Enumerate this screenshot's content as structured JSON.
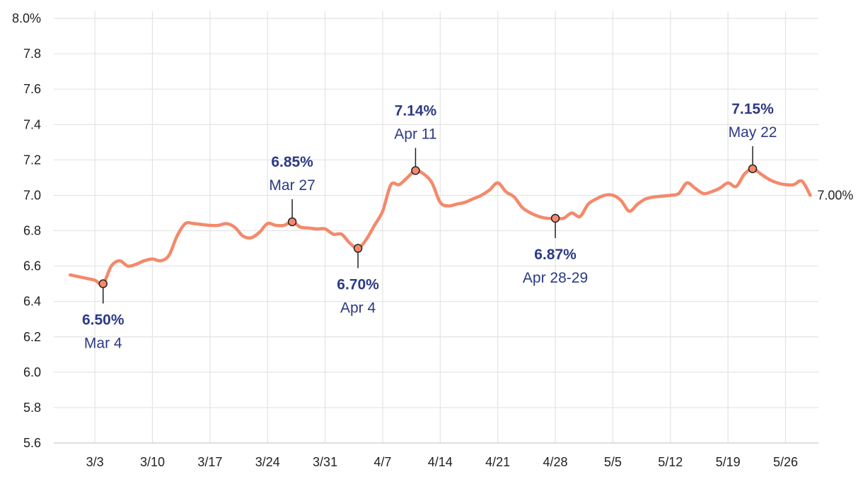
{
  "chart_data": {
    "type": "line",
    "x_start": "2025-02-26",
    "x_end": "2025-05-30",
    "ylim": [
      5.6,
      8.0
    ],
    "y_ticks": [
      {
        "value": 8.0,
        "label": "8.0%"
      },
      {
        "value": 7.8,
        "label": "7.8"
      },
      {
        "value": 7.6,
        "label": "7.6"
      },
      {
        "value": 7.4,
        "label": "7.4"
      },
      {
        "value": 7.2,
        "label": "7.2"
      },
      {
        "value": 7.0,
        "label": "7.0"
      },
      {
        "value": 6.8,
        "label": "6.8"
      },
      {
        "value": 6.6,
        "label": "6.6"
      },
      {
        "value": 6.4,
        "label": "6.4"
      },
      {
        "value": 6.2,
        "label": "6.2"
      },
      {
        "value": 6.0,
        "label": "6.0"
      },
      {
        "value": 5.8,
        "label": "5.8"
      },
      {
        "value": 5.6,
        "label": "5.6"
      }
    ],
    "x_ticks": [
      {
        "date": "2025-03-03",
        "label": "3/3"
      },
      {
        "date": "2025-03-10",
        "label": "3/10"
      },
      {
        "date": "2025-03-17",
        "label": "3/17"
      },
      {
        "date": "2025-03-24",
        "label": "3/24"
      },
      {
        "date": "2025-03-31",
        "label": "3/31"
      },
      {
        "date": "2025-04-07",
        "label": "4/7"
      },
      {
        "date": "2025-04-14",
        "label": "4/14"
      },
      {
        "date": "2025-04-21",
        "label": "4/21"
      },
      {
        "date": "2025-04-28",
        "label": "4/28"
      },
      {
        "date": "2025-05-05",
        "label": "5/5"
      },
      {
        "date": "2025-05-12",
        "label": "5/12"
      },
      {
        "date": "2025-05-19",
        "label": "5/19"
      },
      {
        "date": "2025-05-26",
        "label": "5/26"
      }
    ],
    "grid": true,
    "line_color": "#f4896b",
    "annotation_color": "#2d3a84",
    "series": [
      {
        "points": [
          [
            "2025-02-28",
            6.55
          ],
          [
            "2025-03-01",
            6.54
          ],
          [
            "2025-03-02",
            6.53
          ],
          [
            "2025-03-03",
            6.52
          ],
          [
            "2025-03-04",
            6.5
          ],
          [
            "2025-03-05",
            6.6
          ],
          [
            "2025-03-06",
            6.63
          ],
          [
            "2025-03-07",
            6.6
          ],
          [
            "2025-03-08",
            6.61
          ],
          [
            "2025-03-09",
            6.63
          ],
          [
            "2025-03-10",
            6.64
          ],
          [
            "2025-03-11",
            6.63
          ],
          [
            "2025-03-12",
            6.66
          ],
          [
            "2025-03-13",
            6.77
          ],
          [
            "2025-03-14",
            6.84
          ],
          [
            "2025-03-15",
            6.84
          ],
          [
            "2025-03-16",
            6.835
          ],
          [
            "2025-03-17",
            6.83
          ],
          [
            "2025-03-18",
            6.83
          ],
          [
            "2025-03-19",
            6.84
          ],
          [
            "2025-03-20",
            6.82
          ],
          [
            "2025-03-21",
            6.77
          ],
          [
            "2025-03-22",
            6.76
          ],
          [
            "2025-03-23",
            6.79
          ],
          [
            "2025-03-24",
            6.84
          ],
          [
            "2025-03-25",
            6.83
          ],
          [
            "2025-03-26",
            6.83
          ],
          [
            "2025-03-27",
            6.85
          ],
          [
            "2025-03-28",
            6.82
          ],
          [
            "2025-03-29",
            6.815
          ],
          [
            "2025-03-30",
            6.81
          ],
          [
            "2025-03-31",
            6.81
          ],
          [
            "2025-04-01",
            6.78
          ],
          [
            "2025-04-02",
            6.78
          ],
          [
            "2025-04-03",
            6.73
          ],
          [
            "2025-04-04",
            6.7
          ],
          [
            "2025-04-05",
            6.75
          ],
          [
            "2025-04-06",
            6.83
          ],
          [
            "2025-04-07",
            6.91
          ],
          [
            "2025-04-08",
            7.06
          ],
          [
            "2025-04-09",
            7.06
          ],
          [
            "2025-04-10",
            7.1
          ],
          [
            "2025-04-11",
            7.14
          ],
          [
            "2025-04-12",
            7.12
          ],
          [
            "2025-04-13",
            7.07
          ],
          [
            "2025-04-14",
            6.96
          ],
          [
            "2025-04-15",
            6.94
          ],
          [
            "2025-04-16",
            6.95
          ],
          [
            "2025-04-17",
            6.96
          ],
          [
            "2025-04-18",
            6.98
          ],
          [
            "2025-04-19",
            7.0
          ],
          [
            "2025-04-20",
            7.03
          ],
          [
            "2025-04-21",
            7.07
          ],
          [
            "2025-04-22",
            7.02
          ],
          [
            "2025-04-23",
            6.99
          ],
          [
            "2025-04-24",
            6.93
          ],
          [
            "2025-04-25",
            6.9
          ],
          [
            "2025-04-26",
            6.88
          ],
          [
            "2025-04-27",
            6.87
          ],
          [
            "2025-04-28",
            6.87
          ],
          [
            "2025-04-29",
            6.87
          ],
          [
            "2025-04-30",
            6.9
          ],
          [
            "2025-05-01",
            6.88
          ],
          [
            "2025-05-02",
            6.95
          ],
          [
            "2025-05-03",
            6.98
          ],
          [
            "2025-05-04",
            7.0
          ],
          [
            "2025-05-05",
            7.0
          ],
          [
            "2025-05-06",
            6.97
          ],
          [
            "2025-05-07",
            6.91
          ],
          [
            "2025-05-08",
            6.95
          ],
          [
            "2025-05-09",
            6.98
          ],
          [
            "2025-05-10",
            6.99
          ],
          [
            "2025-05-11",
            6.995
          ],
          [
            "2025-05-12",
            7.0
          ],
          [
            "2025-05-13",
            7.01
          ],
          [
            "2025-05-14",
            7.07
          ],
          [
            "2025-05-15",
            7.04
          ],
          [
            "2025-05-16",
            7.01
          ],
          [
            "2025-05-17",
            7.02
          ],
          [
            "2025-05-18",
            7.04
          ],
          [
            "2025-05-19",
            7.07
          ],
          [
            "2025-05-20",
            7.05
          ],
          [
            "2025-05-21",
            7.12
          ],
          [
            "2025-05-22",
            7.15
          ],
          [
            "2025-05-23",
            7.12
          ],
          [
            "2025-05-24",
            7.09
          ],
          [
            "2025-05-25",
            7.07
          ],
          [
            "2025-05-26",
            7.06
          ],
          [
            "2025-05-27",
            7.06
          ],
          [
            "2025-05-28",
            7.08
          ],
          [
            "2025-05-29",
            7.0
          ]
        ]
      }
    ],
    "annotations": [
      {
        "date": "2025-03-04",
        "value": 6.5,
        "value_label": "6.50%",
        "date_label": "Mar 4",
        "position": "below"
      },
      {
        "date": "2025-03-27",
        "value": 6.85,
        "value_label": "6.85%",
        "date_label": "Mar 27",
        "position": "above"
      },
      {
        "date": "2025-04-04",
        "value": 6.7,
        "value_label": "6.70%",
        "date_label": "Apr 4",
        "position": "below"
      },
      {
        "date": "2025-04-11",
        "value": 7.14,
        "value_label": "7.14%",
        "date_label": "Apr 11",
        "position": "above"
      },
      {
        "date": "2025-04-28",
        "value": 6.87,
        "value_label": "6.87%",
        "date_label": "Apr 28-29",
        "position": "below"
      },
      {
        "date": "2025-05-22",
        "value": 7.15,
        "value_label": "7.15%",
        "date_label": "May 22",
        "position": "above"
      }
    ],
    "end_label": "7.00%"
  }
}
